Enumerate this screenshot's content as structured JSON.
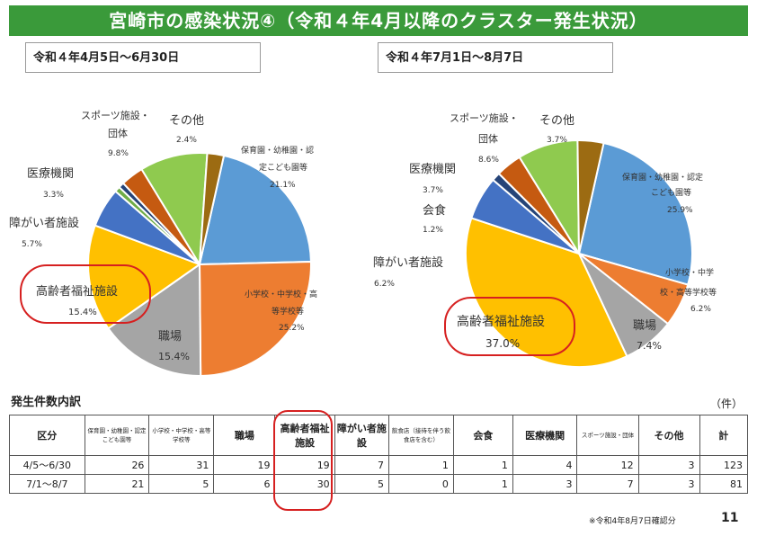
{
  "banner": {
    "title": "宮崎市の感染状況④（令和４年4月以降のクラスター発生状況）"
  },
  "chart_data": [
    {
      "type": "pie",
      "title": "令和４年4月5日～6月30日",
      "slices": [
        {
          "label": "保育園・幼稚園・認定こども園等",
          "value": 21.1,
          "display": "21.1%",
          "color": "#5b9bd5"
        },
        {
          "label": "小学校・中学校・高等学校等",
          "value": 25.2,
          "display": "25.2%",
          "color": "#ed7d31"
        },
        {
          "label": "職場",
          "value": 15.4,
          "display": "15.4%",
          "color": "#a5a5a5"
        },
        {
          "label": "高齢者福祉施設",
          "value": 15.4,
          "display": "15.4%",
          "color": "#ffc000"
        },
        {
          "label": "障がい者施設",
          "value": 5.7,
          "display": "5.7%",
          "color": "#4472c4"
        },
        {
          "label": "飲食店",
          "value": 0.8,
          "display": "",
          "color": "#70ad47"
        },
        {
          "label": "会食",
          "value": 0.8,
          "display": "",
          "color": "#264478"
        },
        {
          "label": "医療機関",
          "value": 3.3,
          "display": "3.3%",
          "color": "#c55a11"
        },
        {
          "label": "スポーツ施設・団体",
          "value": 9.8,
          "display": "9.8%",
          "color": "#8fca4f"
        },
        {
          "label": "その他",
          "value": 2.4,
          "display": "2.4%",
          "color": "#9c6b12"
        }
      ]
    },
    {
      "type": "pie",
      "title": "令和４年7月1日～8月7日",
      "slices": [
        {
          "label": "保育園・幼稚園・認定こども園等",
          "value": 25.9,
          "display": "25.9%",
          "color": "#5b9bd5"
        },
        {
          "label": "小学校・中学校・高等学校等",
          "value": 6.2,
          "display": "6.2%",
          "color": "#ed7d31"
        },
        {
          "label": "職場",
          "value": 7.4,
          "display": "7.4%",
          "color": "#a5a5a5"
        },
        {
          "label": "高齢者福祉施設",
          "value": 37.0,
          "display": "37.0%",
          "color": "#ffc000"
        },
        {
          "label": "障がい者施設",
          "value": 6.2,
          "display": "6.2%",
          "color": "#4472c4"
        },
        {
          "label": "会食",
          "value": 1.2,
          "display": "1.2%",
          "color": "#264478"
        },
        {
          "label": "医療機関",
          "value": 3.7,
          "display": "3.7%",
          "color": "#c55a11"
        },
        {
          "label": "スポーツ施設・団体",
          "value": 8.6,
          "display": "8.6%",
          "color": "#8fca4f"
        },
        {
          "label": "その他",
          "value": 3.7,
          "display": "3.7%",
          "color": "#9c6b12"
        }
      ]
    }
  ],
  "pie1_labels": {
    "hoiku_1": "保育園・幼稚園・認",
    "hoiku_2": "定こども園等",
    "hoiku_pct": "21.1%",
    "school_1": "小学校・中学校・高",
    "school_2": "等学校等",
    "school_pct": "25.2%",
    "shokuba_1": "職場",
    "shokuba_pct": "15.4%",
    "korei_1": "高齢者福祉施設",
    "korei_pct": "15.4%",
    "shogai_1": "障がい者施設",
    "shogai_pct": "5.7%",
    "iryo_1": "医療機関",
    "iryo_pct": "3.3%",
    "sports_1": "スポーツ施設・",
    "sports_2": "団体",
    "sports_pct": "9.8%",
    "other_1": "その他",
    "other_pct": "2.4%"
  },
  "pie2_labels": {
    "hoiku_1": "保育園・幼稚園・認定",
    "hoiku_2": "こども園等",
    "hoiku_pct": "25.9%",
    "school_1": "小学校・中学",
    "school_2": "校・高等学校等",
    "school_pct": "6.2%",
    "shokuba_1": "職場",
    "shokuba_pct": "7.4%",
    "korei_1": "高齢者福祉施設",
    "korei_pct": "37.0%",
    "shogai_1": "障がい者施設",
    "shogai_pct": "6.2%",
    "kaishoku_1": "会食",
    "kaishoku_pct": "1.2%",
    "iryo_1": "医療機関",
    "iryo_pct": "3.7%",
    "sports_1": "スポーツ施設・",
    "sports_2": "団体",
    "sports_pct": "8.6%",
    "other_1": "その他",
    "other_pct": "3.7%"
  },
  "table": {
    "title": "発生件数内訳",
    "unit": "（件）",
    "headers": {
      "kubun": "区分",
      "hoiku": "保育園・幼稚園・認定こども園等",
      "school": "小学校・中学校・高等学校等",
      "shokuba": "職場",
      "korei": "高齢者福祉施設",
      "shogai": "障がい者施設",
      "inshoku": "飲食店（接待を伴う飲食店を含む）",
      "kaishoku": "会食",
      "iryo": "医療機関",
      "sports": "スポーツ施設・団体",
      "other": "その他",
      "total": "計"
    },
    "rows": [
      {
        "period": "4/5～6/30",
        "hoiku": "26",
        "school": "31",
        "shokuba": "19",
        "korei": "19",
        "shogai": "7",
        "inshoku": "1",
        "kaishoku": "1",
        "iryo": "4",
        "sports": "12",
        "other": "3",
        "total": "123"
      },
      {
        "period": "7/1～8/7",
        "hoiku": "21",
        "school": "5",
        "shokuba": "6",
        "korei": "30",
        "shogai": "5",
        "inshoku": "0",
        "kaishoku": "1",
        "iryo": "3",
        "sports": "7",
        "other": "3",
        "total": "81"
      }
    ]
  },
  "footer": {
    "note": "※令和4年8月7日確認分",
    "page": "11"
  }
}
